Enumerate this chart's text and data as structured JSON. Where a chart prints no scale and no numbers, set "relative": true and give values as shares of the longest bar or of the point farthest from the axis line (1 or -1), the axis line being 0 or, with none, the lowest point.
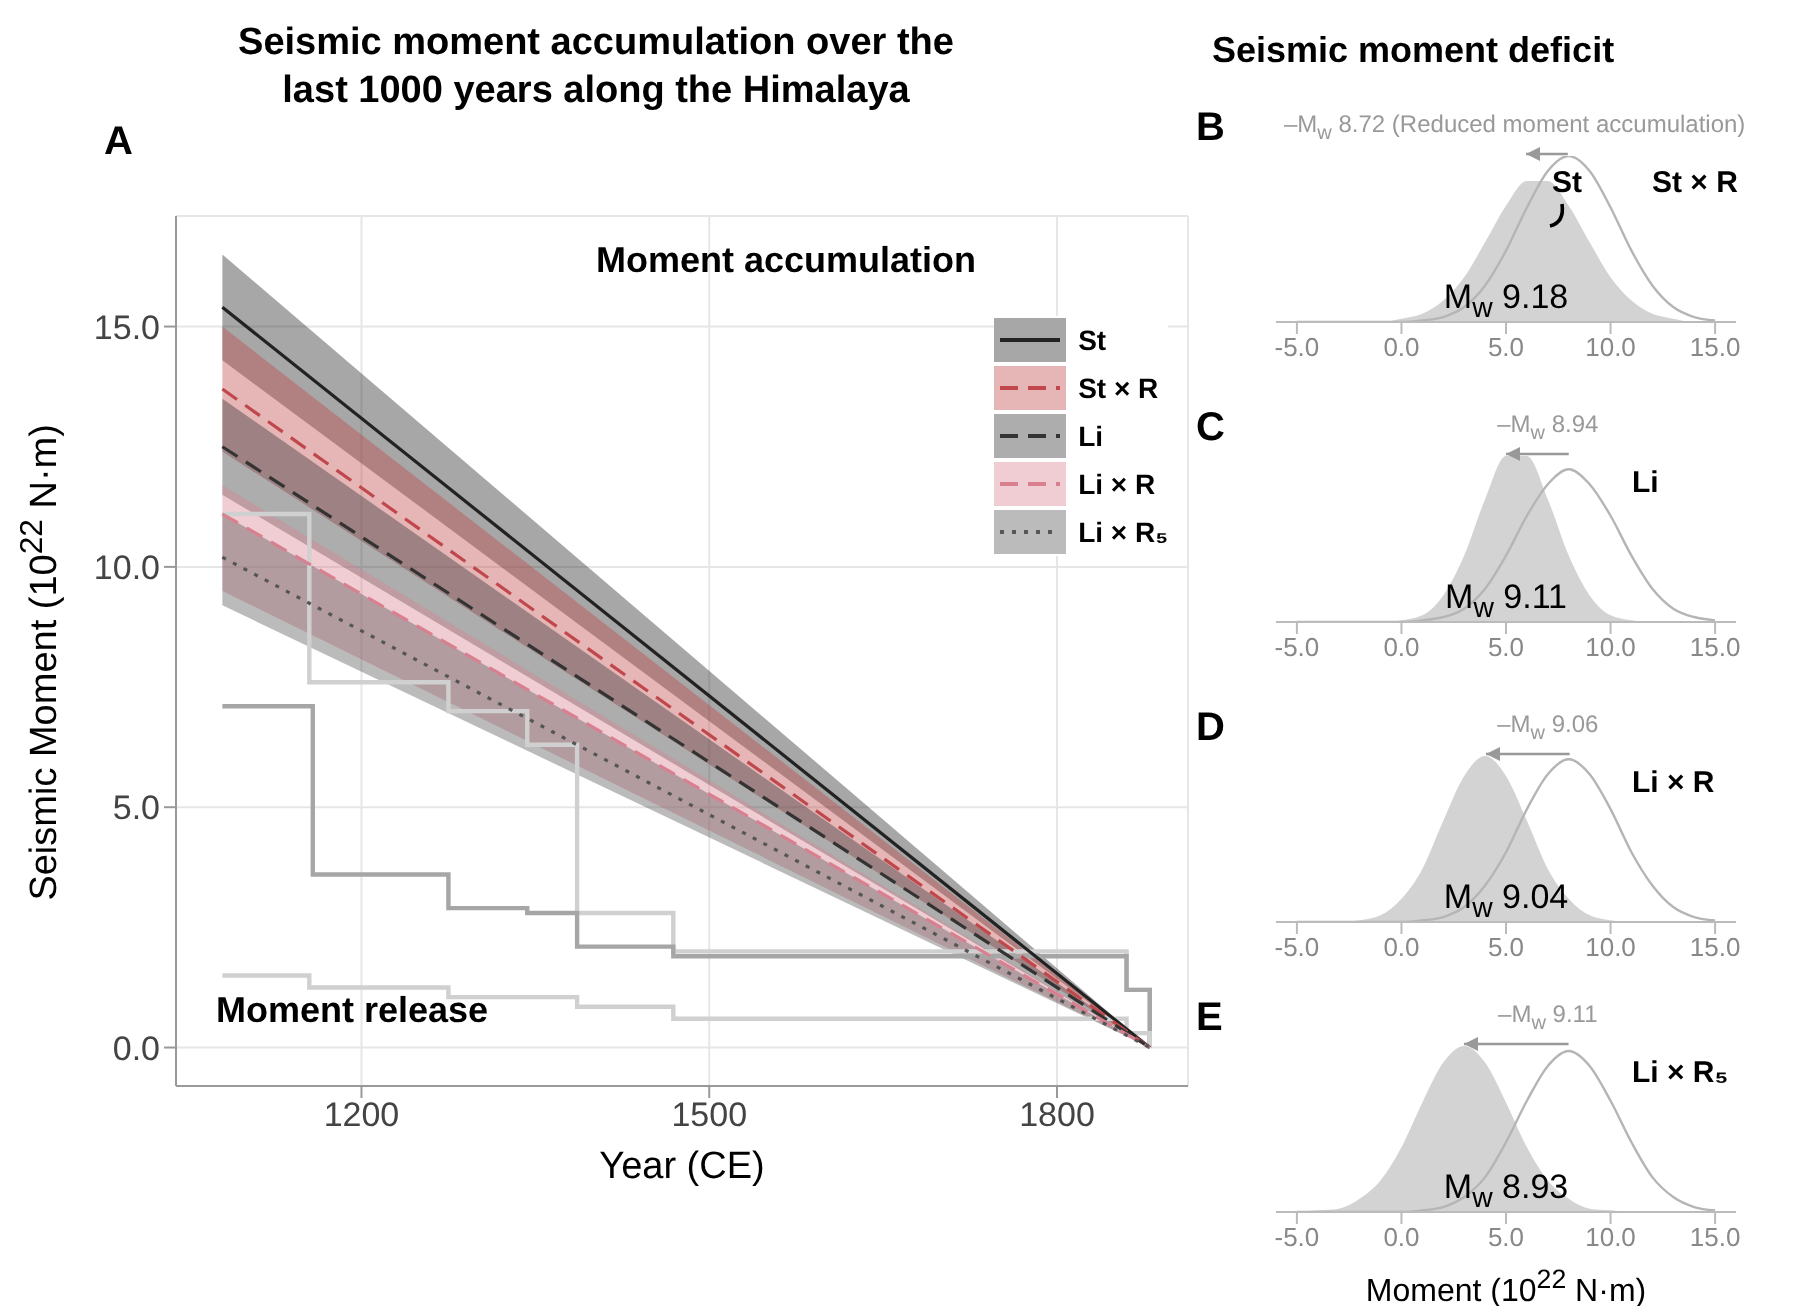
{
  "chart_data": [
    {
      "type": "line",
      "title": "Seismic moment accumulation over the last 1000 years along the Himalaya",
      "xlabel": "Year (CE)",
      "ylabel": "Seismic Moment (10$^{22}$ N·m)",
      "annotations": [
        "A",
        "Moment accumulation",
        "Moment release"
      ],
      "xlim": [
        1040,
        1913
      ],
      "xticks": [
        1200,
        1500,
        1800
      ],
      "ylim": [
        -0.8,
        17.3
      ],
      "yticks": [
        {
          "value": 0,
          "label": "0.0"
        },
        {
          "value": 5,
          "label": "5.0"
        },
        {
          "value": 10,
          "label": "10.0"
        },
        {
          "value": 15,
          "label": "15.0"
        }
      ],
      "grid": true,
      "legend": "top right",
      "series": [
        {
          "name": "St",
          "line_style": "solid",
          "color": "#222222",
          "x": [
            1080,
            1880
          ],
          "values": [
            15.4,
            0
          ],
          "lower": [
            14.3,
            0
          ],
          "upper": [
            16.5,
            0
          ]
        },
        {
          "name": "St × R",
          "line_style": "dashed",
          "color": "#c0484c",
          "x": [
            1080,
            1880
          ],
          "values": [
            13.7,
            0
          ],
          "lower": [
            12.4,
            0
          ],
          "upper": [
            15.0,
            0
          ]
        },
        {
          "name": "Li",
          "line_style": "dashed",
          "color": "#333333",
          "x": [
            1080,
            1880
          ],
          "values": [
            12.5,
            0
          ],
          "lower": [
            11.5,
            0
          ],
          "upper": [
            13.5,
            0
          ]
        },
        {
          "name": "Li × R",
          "line_style": "dashed",
          "color": "#d98090",
          "x": [
            1080,
            1880
          ],
          "values": [
            11.1,
            0
          ],
          "lower": [
            9.5,
            0
          ],
          "upper": [
            11.7,
            0
          ]
        },
        {
          "name": "Li × R₅",
          "line_style": "dotted",
          "color": "#555555",
          "x": [
            1080,
            1880
          ],
          "values": [
            10.2,
            0
          ],
          "lower": [
            9.2,
            0
          ],
          "upper": [
            11.1,
            0
          ]
        },
        {
          "type": "step",
          "color": "#d0d0d0",
          "x": [
            1080,
            1155,
            1275,
            1343,
            1386,
            1469,
            1860,
            1880
          ],
          "values": [
            11.1,
            7.6,
            7.0,
            6.3,
            2.8,
            2.0,
            1.2,
            0
          ]
        },
        {
          "type": "step",
          "color": "#a6a6a6",
          "x": [
            1080,
            1158,
            1275,
            1343,
            1386,
            1469,
            1860,
            1880
          ],
          "values": [
            7.1,
            3.6,
            2.9,
            2.8,
            2.1,
            1.9,
            1.2,
            0
          ]
        },
        {
          "type": "step",
          "color": "#d0d0d0",
          "x": [
            1080,
            1155,
            1275,
            1386,
            1469,
            1860,
            1880
          ],
          "values": [
            1.5,
            1.25,
            1.05,
            0.85,
            0.6,
            0.3,
            0
          ]
        }
      ]
    },
    {
      "type": "area",
      "title": "Seismic moment deficit",
      "relative": true,
      "tick_labels": "x",
      "annotations": [
        "B",
        "–M$_{w}$ 8.72 (Reduced moment accumulation)",
        "M$_{w}$ 9.18",
        "St",
        "St × R"
      ],
      "x": [
        -5,
        -4,
        -3,
        -2,
        -1,
        0,
        1,
        2,
        3,
        4,
        5,
        6,
        7,
        8,
        9,
        10,
        11,
        12,
        13,
        14,
        15
      ],
      "xlim": [
        -6,
        16
      ],
      "xticks": [
        {
          "value": -5,
          "label": "-5.0"
        },
        {
          "value": 0,
          "label": "0.0"
        },
        {
          "value": 5,
          "label": "5.0"
        },
        {
          "value": 10,
          "label": "10.0"
        },
        {
          "value": 15,
          "label": "15.0"
        }
      ],
      "series": [
        {
          "color": "#d3d3d3",
          "values": [
            0,
            0,
            0,
            0,
            0,
            0.02,
            0.05,
            0.13,
            0.27,
            0.48,
            0.7,
            0.85,
            0.85,
            0.7,
            0.48,
            0.27,
            0.13,
            0.05,
            0.02,
            0,
            0
          ]
        },
        {
          "type": "line",
          "color": "#b5b5b5",
          "values": [
            0,
            0,
            0,
            0,
            0,
            0,
            0.01,
            0.03,
            0.09,
            0.22,
            0.43,
            0.69,
            0.91,
            1,
            0.91,
            0.69,
            0.43,
            0.22,
            0.09,
            0.03,
            0.01
          ]
        }
      ]
    },
    {
      "type": "area",
      "relative": true,
      "tick_labels": "x",
      "annotations": [
        "C",
        "–M$_{w}$ 8.94",
        "M$_{w}$ 9.11",
        "Li"
      ],
      "x": [
        -5,
        -4,
        -3,
        -2,
        -1,
        0,
        1,
        2,
        3,
        4,
        5,
        6,
        7,
        8,
        9,
        10,
        11,
        12,
        13,
        14,
        15
      ],
      "xlim": [
        -6,
        16
      ],
      "xticks": [
        {
          "value": -5,
          "label": "-5.0"
        },
        {
          "value": 0,
          "label": "0.0"
        },
        {
          "value": 5,
          "label": "5.0"
        },
        {
          "value": 10,
          "label": "10.0"
        },
        {
          "value": 15,
          "label": "15.0"
        }
      ],
      "series": [
        {
          "color": "#d3d3d3",
          "values": [
            0,
            0,
            0,
            0,
            0,
            0.01,
            0.04,
            0.16,
            0.4,
            0.74,
            1,
            1,
            0.74,
            0.4,
            0.16,
            0.04,
            0.01,
            0,
            0,
            0,
            0
          ]
        },
        {
          "type": "line",
          "color": "#b5b5b5",
          "values": [
            0,
            0,
            0,
            0,
            0,
            0,
            0.01,
            0.03,
            0.08,
            0.2,
            0.4,
            0.64,
            0.83,
            0.92,
            0.83,
            0.64,
            0.4,
            0.2,
            0.08,
            0.03,
            0.01
          ]
        }
      ]
    },
    {
      "type": "area",
      "relative": true,
      "tick_labels": "x",
      "annotations": [
        "D",
        "–M$_{w}$ 9.06",
        "M$_{w}$ 9.04",
        "Li × R"
      ],
      "x": [
        -5,
        -4,
        -3,
        -2,
        -1,
        0,
        1,
        2,
        3,
        4,
        5,
        6,
        7,
        8,
        9,
        10,
        11,
        12,
        13,
        14,
        15
      ],
      "xlim": [
        -6,
        16
      ],
      "xticks": [
        {
          "value": -5,
          "label": "-5.0"
        },
        {
          "value": 0,
          "label": "0.0"
        },
        {
          "value": 5,
          "label": "5.0"
        },
        {
          "value": 10,
          "label": "10.0"
        },
        {
          "value": 15,
          "label": "15.0"
        }
      ],
      "series": [
        {
          "color": "#d3d3d3",
          "values": [
            0,
            0,
            0,
            0.01,
            0.04,
            0.14,
            0.32,
            0.61,
            0.88,
            1,
            0.88,
            0.61,
            0.32,
            0.14,
            0.04,
            0.01,
            0,
            0,
            0,
            0,
            0
          ]
        },
        {
          "type": "line",
          "color": "#b5b5b5",
          "values": [
            0,
            0,
            0,
            0,
            0,
            0,
            0.01,
            0.03,
            0.09,
            0.22,
            0.42,
            0.68,
            0.89,
            0.98,
            0.89,
            0.68,
            0.42,
            0.22,
            0.09,
            0.03,
            0.01
          ]
        }
      ]
    },
    {
      "type": "area",
      "relative": true,
      "tick_labels": "x",
      "xlabel": "Moment (10$^{22}$ N·m)",
      "annotations": [
        "E",
        "–M$_{w}$ 9.11",
        "M$_{w}$ 8.93",
        "Li × R₅"
      ],
      "x": [
        -5,
        -4,
        -3,
        -2,
        -1,
        0,
        1,
        2,
        3,
        4,
        5,
        6,
        7,
        8,
        9,
        10,
        11,
        12,
        13,
        14,
        15
      ],
      "xlim": [
        -6,
        16
      ],
      "xticks": [
        {
          "value": -5,
          "label": "-5.0"
        },
        {
          "value": 0,
          "label": "0.0"
        },
        {
          "value": 5,
          "label": "5.0"
        },
        {
          "value": 10,
          "label": "10.0"
        },
        {
          "value": 15,
          "label": "15.0"
        }
      ],
      "series": [
        {
          "color": "#d3d3d3",
          "values": [
            0,
            0.01,
            0.02,
            0.08,
            0.19,
            0.39,
            0.66,
            0.9,
            1,
            0.9,
            0.66,
            0.39,
            0.19,
            0.08,
            0.02,
            0.01,
            0,
            0,
            0,
            0,
            0
          ]
        },
        {
          "type": "line",
          "color": "#b5b5b5",
          "values": [
            0,
            0,
            0,
            0,
            0,
            0,
            0.01,
            0.03,
            0.09,
            0.21,
            0.42,
            0.67,
            0.88,
            0.97,
            0.88,
            0.67,
            0.42,
            0.21,
            0.09,
            0.03,
            0.01
          ]
        }
      ]
    }
  ]
}
